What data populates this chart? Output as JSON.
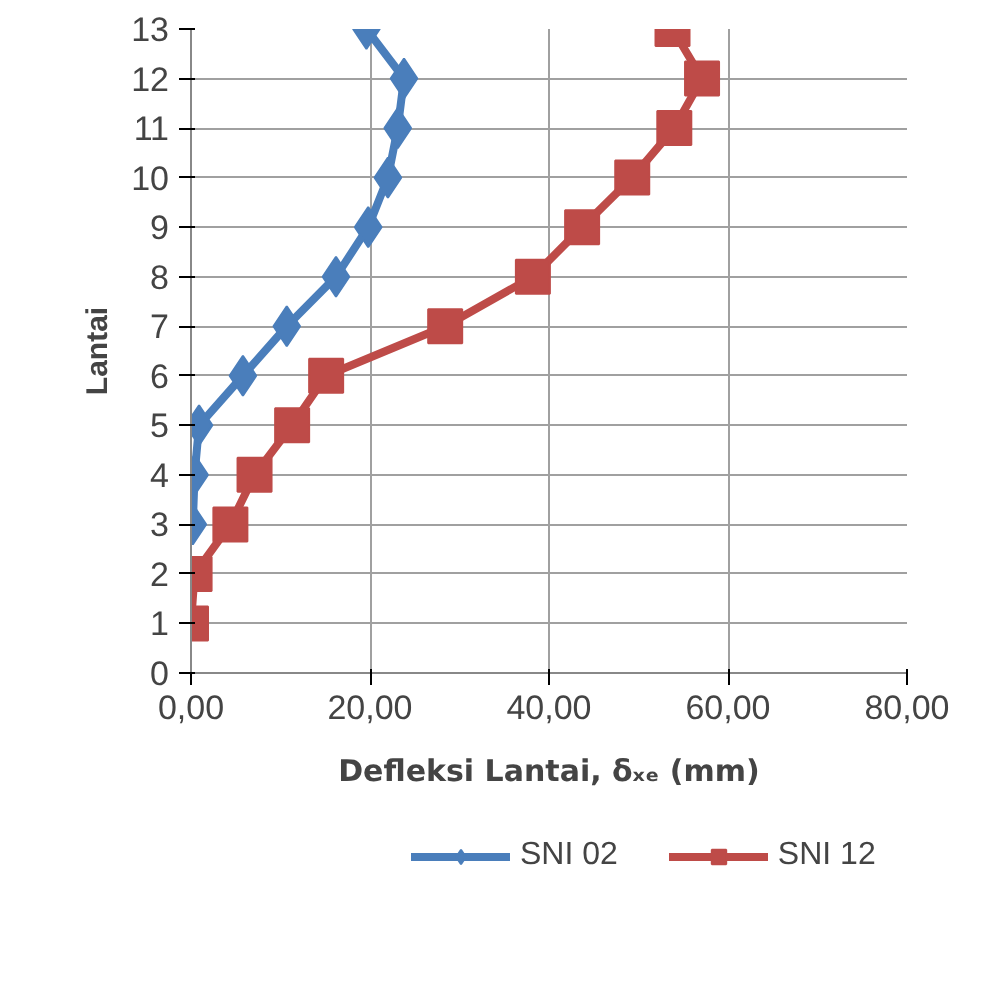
{
  "chart_data": {
    "type": "line",
    "xlabel": "Defleksi Lantai, δₓₑ (mm)",
    "ylabel": "Lantai",
    "orientation": "horizontal",
    "x": [
      1,
      2,
      3,
      4,
      5,
      6,
      7,
      8,
      9,
      10,
      11,
      12,
      13
    ],
    "series": [
      {
        "name": "SNI 02",
        "color": "#4a7ebb",
        "marker": "diamond",
        "values": [
          null,
          null,
          0.2,
          0.4,
          0.9,
          5.8,
          10.7,
          16.2,
          19.8,
          22.0,
          23.1,
          23.8,
          19.6
        ]
      },
      {
        "name": "SNI 12",
        "color": "#be4b48",
        "marker": "square",
        "values": [
          0.0,
          0.4,
          4.4,
          7.1,
          11.3,
          15.1,
          28.4,
          38.2,
          43.7,
          49.3,
          54.0,
          57.1,
          53.8
        ]
      }
    ],
    "xlim": [
      0,
      80
    ],
    "xticks": [
      {
        "value": 0,
        "label": "0,00"
      },
      {
        "value": 20,
        "label": "20,00"
      },
      {
        "value": 40,
        "label": "40,00"
      },
      {
        "value": 60,
        "label": "60,00"
      },
      {
        "value": 80,
        "label": "80,00"
      }
    ],
    "ylim": [
      0,
      13
    ],
    "yticks": [
      0,
      1,
      2,
      3,
      4,
      5,
      6,
      7,
      8,
      9,
      10,
      11,
      12,
      13
    ],
    "grid": true,
    "legend": "bottom",
    "line_style": "solid"
  }
}
